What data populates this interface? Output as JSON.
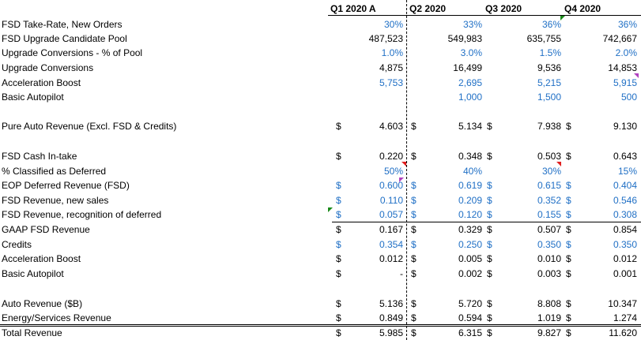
{
  "headers": {
    "q1": "Q1 2020 A",
    "q2": "Q2 2020",
    "q3": "Q3 2020",
    "q4": "Q4 2020"
  },
  "rows": {
    "take_rate": {
      "label": "FSD Take-Rate, New Orders",
      "q1": "30%",
      "q2": "33%",
      "q3": "36%",
      "q4": "36%"
    },
    "pool": {
      "label": "FSD Upgrade Candidate Pool",
      "q1": "487,523",
      "q2": "549,983",
      "q3": "635,755",
      "q4": "742,667"
    },
    "conv_pct": {
      "label": "Upgrade Conversions - % of Pool",
      "q1": "1.0%",
      "q2": "3.0%",
      "q3": "1.5%",
      "q4": "2.0%"
    },
    "conversions": {
      "label": "Upgrade Conversions",
      "q1": "4,875",
      "q2": "16,499",
      "q3": "9,536",
      "q4": "14,853"
    },
    "accel_units": {
      "label": "Acceleration Boost",
      "q1": "5,753",
      "q2": "2,695",
      "q3": "5,215",
      "q4": "5,915"
    },
    "basic_units": {
      "label": "Basic Autopilot",
      "q1": "",
      "q2": "1,000",
      "q3": "1,500",
      "q4": "500"
    },
    "pure_auto": {
      "label": "Pure Auto Revenue (Excl. FSD & Credits)",
      "q1": "4.603",
      "q2": "5.134",
      "q3": "7.938",
      "q4": "9.130"
    },
    "cash_intake": {
      "label": "FSD Cash In-take",
      "q1": "0.220",
      "q2": "0.348",
      "q3": "0.503",
      "q4": "0.643"
    },
    "deferred_pct": {
      "label": "% Classified as Deferred",
      "q1": "50%",
      "q2": "40%",
      "q3": "30%",
      "q4": "15%"
    },
    "eop_deferred": {
      "label": "EOP Deferred Revenue (FSD)",
      "q1": "0.600",
      "q2": "0.619",
      "q3": "0.615",
      "q4": "0.404"
    },
    "fsd_new": {
      "label": "FSD Revenue, new sales",
      "q1": "0.110",
      "q2": "0.209",
      "q3": "0.352",
      "q4": "0.546"
    },
    "fsd_recog": {
      "label": "FSD Revenue, recognition of deferred",
      "q1": "0.057",
      "q2": "0.120",
      "q3": "0.155",
      "q4": "0.308"
    },
    "gaap_fsd": {
      "label": "GAAP FSD Revenue",
      "q1": "0.167",
      "q2": "0.329",
      "q3": "0.507",
      "q4": "0.854"
    },
    "credits": {
      "label": "Credits",
      "q1": "0.354",
      "q2": "0.250",
      "q3": "0.350",
      "q4": "0.350"
    },
    "accel_rev": {
      "label": "Acceleration Boost",
      "q1": "0.012",
      "q2": "0.005",
      "q3": "0.010",
      "q4": "0.012"
    },
    "basic_rev": {
      "label": "Basic Autopilot",
      "q1": "-",
      "q2": "0.002",
      "q3": "0.003",
      "q4": "0.001"
    },
    "auto_rev": {
      "label": "Auto Revenue ($B)",
      "q1": "5.136",
      "q2": "5.720",
      "q3": "8.808",
      "q4": "10.347"
    },
    "energy_rev": {
      "label": "Energy/Services Revenue",
      "q1": "0.849",
      "q2": "0.594",
      "q3": "1.019",
      "q4": "1.274"
    },
    "total_rev": {
      "label": "Total Revenue",
      "q1": "5.985",
      "q2": "6.315",
      "q3": "9.827",
      "q4": "11.620"
    }
  },
  "currency_symbol": "$",
  "colors": {
    "input_blue": "#1f6fc5",
    "comment_red": "#e02020",
    "comment_green": "#1a8a1a",
    "comment_purple": "#b040c0"
  }
}
